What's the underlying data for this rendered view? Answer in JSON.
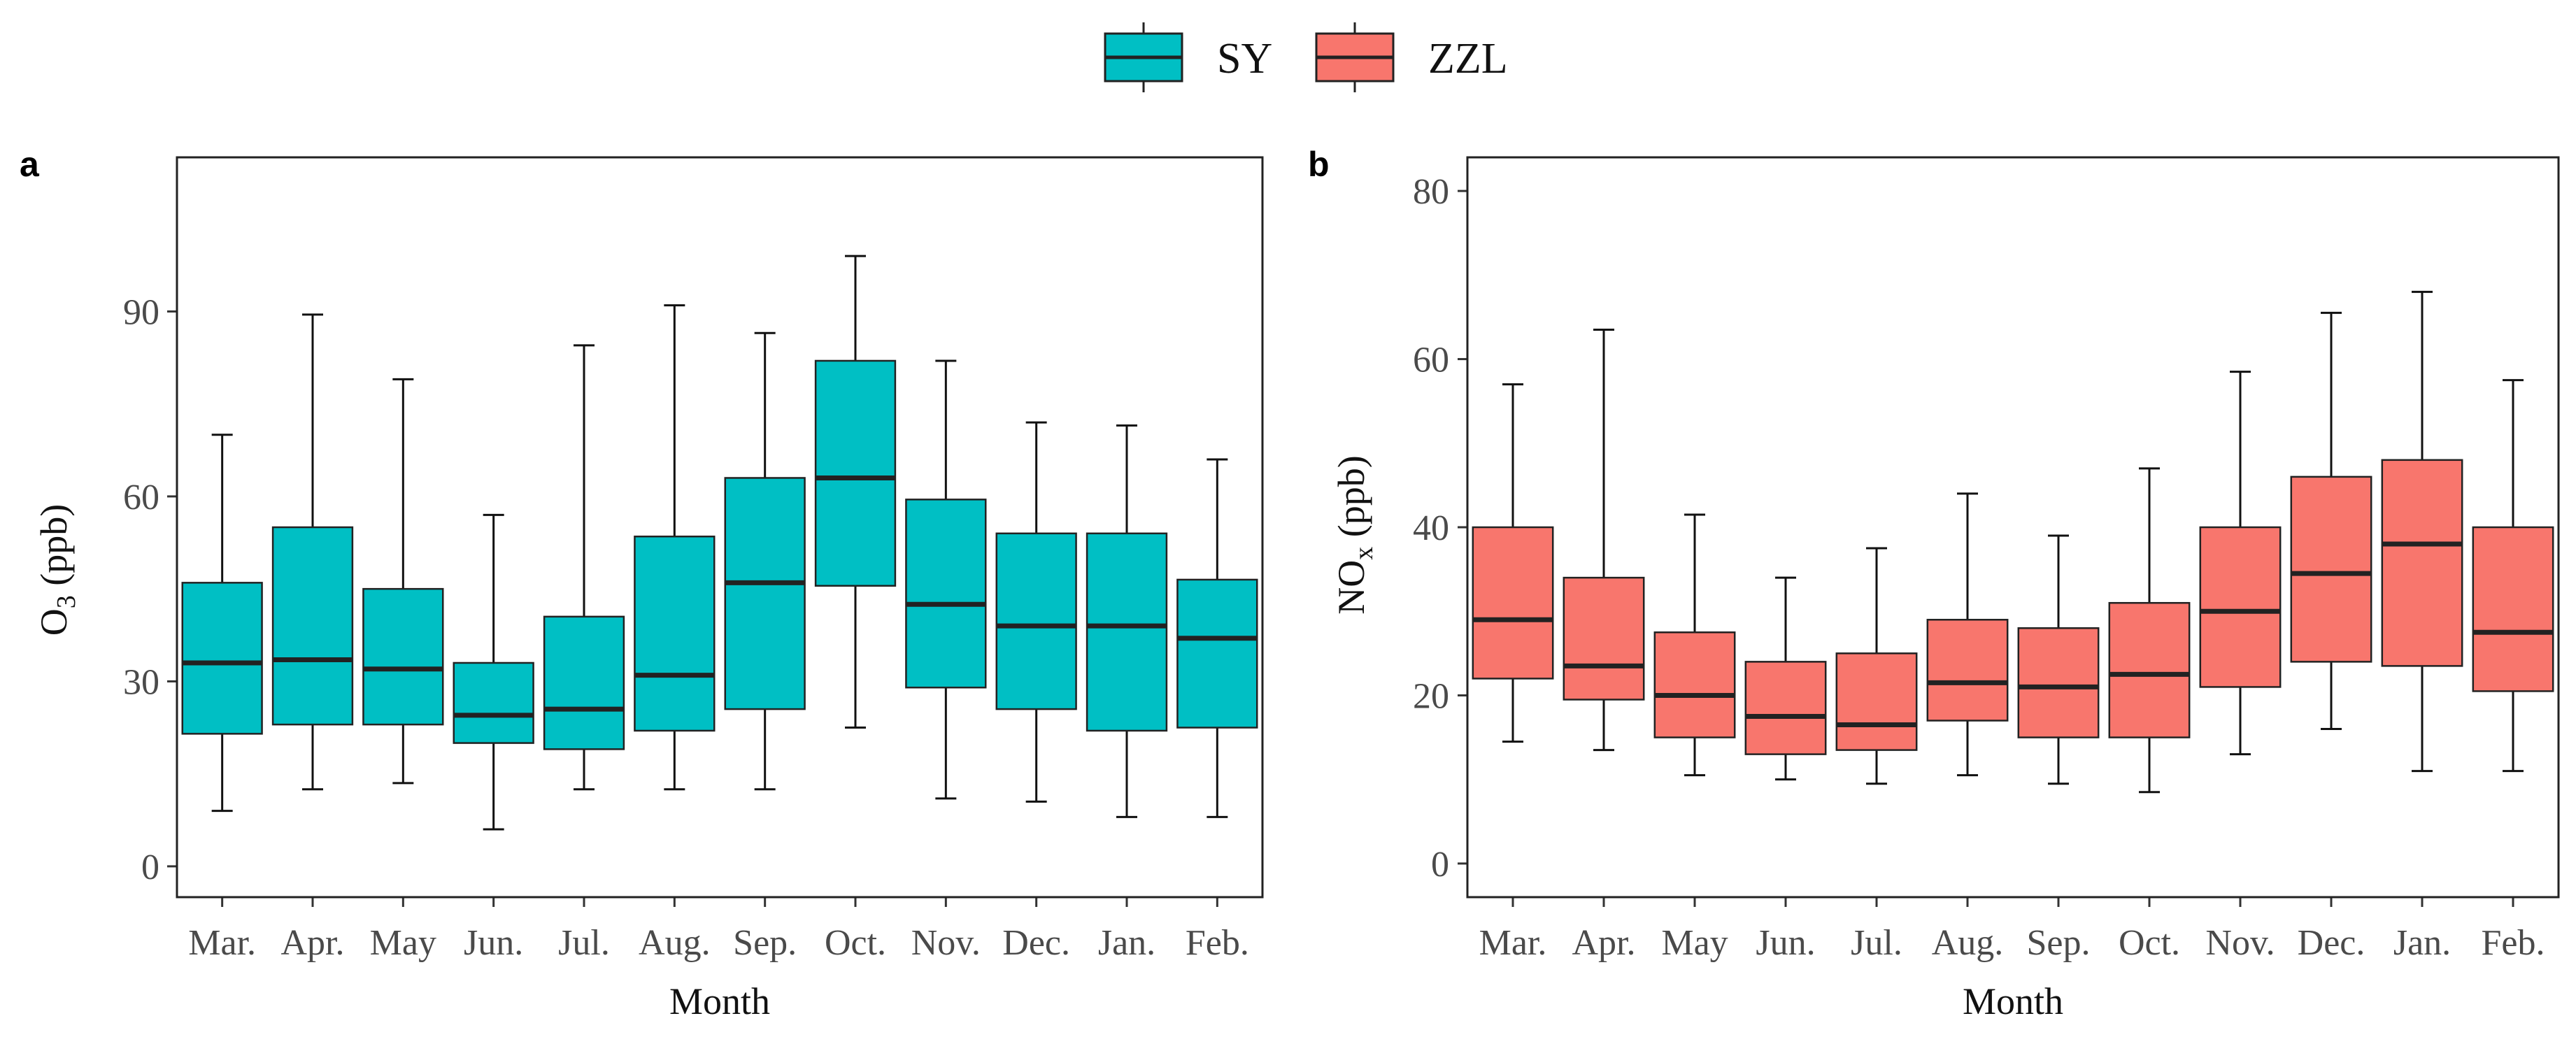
{
  "legend": {
    "items": [
      {
        "label": "SY",
        "color": "#00BFC4"
      },
      {
        "label": "ZZL",
        "color": "#F8766D"
      }
    ]
  },
  "chart_data": [
    {
      "type": "boxplot",
      "panel_label": "a",
      "series": "SY",
      "color": "#00BFC4",
      "xlabel": "Month",
      "ylabel": "O3 (ppb)",
      "ylabel_main": "O",
      "ylabel_sub": "3",
      "ylabel_rest": " (ppb)",
      "ylim": [
        -5,
        115
      ],
      "yticks": [
        0,
        30,
        60,
        90
      ],
      "categories": [
        "Mar.",
        "Apr.",
        "May",
        "Jun.",
        "Jul.",
        "Aug.",
        "Sep.",
        "Oct.",
        "Nov.",
        "Dec.",
        "Jan.",
        "Feb."
      ],
      "boxes": [
        {
          "whisker_low": 9,
          "q1": 21.5,
          "median": 33,
          "q3": 46,
          "whisker_high": 70
        },
        {
          "whisker_low": 12.5,
          "q1": 23,
          "median": 33.5,
          "q3": 55,
          "whisker_high": 89.5
        },
        {
          "whisker_low": 13.5,
          "q1": 23,
          "median": 32,
          "q3": 45,
          "whisker_high": 79
        },
        {
          "whisker_low": 6,
          "q1": 20,
          "median": 24.5,
          "q3": 33,
          "whisker_high": 57
        },
        {
          "whisker_low": 12.5,
          "q1": 19,
          "median": 25.5,
          "q3": 40.5,
          "whisker_high": 84.5
        },
        {
          "whisker_low": 12.5,
          "q1": 22,
          "median": 31,
          "q3": 53.5,
          "whisker_high": 91
        },
        {
          "whisker_low": 12.5,
          "q1": 25.5,
          "median": 46,
          "q3": 63,
          "whisker_high": 86.5
        },
        {
          "whisker_low": 22.5,
          "q1": 45.5,
          "median": 63,
          "q3": 82,
          "whisker_high": 99
        },
        {
          "whisker_low": 11,
          "q1": 29,
          "median": 42.5,
          "q3": 59.5,
          "whisker_high": 82
        },
        {
          "whisker_low": 10.5,
          "q1": 25.5,
          "median": 39,
          "q3": 54,
          "whisker_high": 72
        },
        {
          "whisker_low": 8,
          "q1": 22,
          "median": 39,
          "q3": 54,
          "whisker_high": 71.5
        },
        {
          "whisker_low": 8,
          "q1": 22.5,
          "median": 37,
          "q3": 46.5,
          "whisker_high": 66
        }
      ]
    },
    {
      "type": "boxplot",
      "panel_label": "b",
      "series": "ZZL",
      "color": "#F8766D",
      "xlabel": "Month",
      "ylabel": "NOx (ppb)",
      "ylabel_main": "NO",
      "ylabel_sub": "x",
      "ylabel_rest": " (ppb)",
      "ylim": [
        -4,
        84
      ],
      "yticks": [
        0,
        20,
        40,
        60,
        80
      ],
      "categories": [
        "Mar.",
        "Apr.",
        "May",
        "Jun.",
        "Jul.",
        "Aug.",
        "Sep.",
        "Oct.",
        "Nov.",
        "Dec.",
        "Jan.",
        "Feb."
      ],
      "boxes": [
        {
          "whisker_low": 14.5,
          "q1": 22,
          "median": 29,
          "q3": 40,
          "whisker_high": 57
        },
        {
          "whisker_low": 13.5,
          "q1": 19.5,
          "median": 23.5,
          "q3": 34,
          "whisker_high": 63.5
        },
        {
          "whisker_low": 10.5,
          "q1": 15,
          "median": 20,
          "q3": 27.5,
          "whisker_high": 41.5
        },
        {
          "whisker_low": 10,
          "q1": 13,
          "median": 17.5,
          "q3": 24,
          "whisker_high": 34
        },
        {
          "whisker_low": 9.5,
          "q1": 13.5,
          "median": 16.5,
          "q3": 25,
          "whisker_high": 37.5
        },
        {
          "whisker_low": 10.5,
          "q1": 17,
          "median": 21.5,
          "q3": 29,
          "whisker_high": 44
        },
        {
          "whisker_low": 9.5,
          "q1": 15,
          "median": 21,
          "q3": 28,
          "whisker_high": 39
        },
        {
          "whisker_low": 8.5,
          "q1": 15,
          "median": 22.5,
          "q3": 31,
          "whisker_high": 47
        },
        {
          "whisker_low": 13,
          "q1": 21,
          "median": 30,
          "q3": 40,
          "whisker_high": 58.5
        },
        {
          "whisker_low": 16,
          "q1": 24,
          "median": 34.5,
          "q3": 46,
          "whisker_high": 65.5
        },
        {
          "whisker_low": 11,
          "q1": 23.5,
          "median": 38,
          "q3": 48,
          "whisker_high": 68
        },
        {
          "whisker_low": 11,
          "q1": 20.5,
          "median": 27.5,
          "q3": 40,
          "whisker_high": 57.5
        }
      ]
    }
  ]
}
